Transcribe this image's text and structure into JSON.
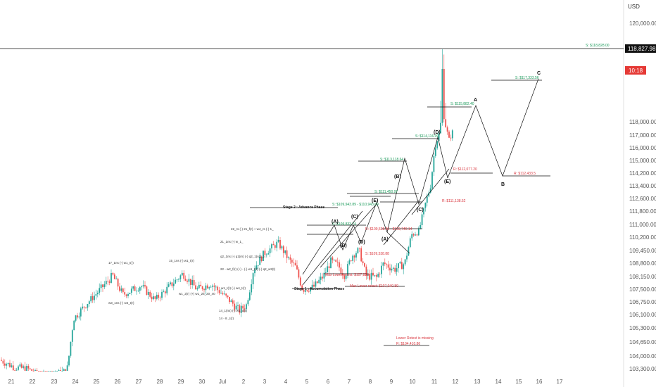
{
  "currency": "USD",
  "current_price": "118,827.98",
  "countdown": "10:18",
  "colors": {
    "up": "#26a69a",
    "down": "#ef5350",
    "green": "#1a9a5a",
    "red": "#d9363e",
    "line": "#111111"
  },
  "chart_data": {
    "type": "candlestick",
    "y_ticks": [
      "103,300.00",
      "104,000.00",
      "104,650.00",
      "105,300.00",
      "106,100.00",
      "106,750.00",
      "107,500.00",
      "108,150.00",
      "108,800.00",
      "109,450.00",
      "110,200.00",
      "111,000.00",
      "111,800.00",
      "112,600.00",
      "113,400.00",
      "114,200.00",
      "115,000.00",
      "116,000.00",
      "117,000.00",
      "118,000.00",
      "120,000.00"
    ],
    "x_ticks": [
      "21",
      "22",
      "23",
      "24",
      "25",
      "26",
      "27",
      "28",
      "29",
      "30",
      "Jul",
      "2",
      "3",
      "4",
      "5",
      "6",
      "7",
      "8",
      "9",
      "10",
      "11",
      "12",
      "13",
      "14",
      "15",
      "16",
      "17"
    ],
    "ylim": [
      103300,
      119000
    ],
    "levels": [
      {
        "text": "S: $118,828.00",
        "color": "green"
      },
      {
        "text": "S: $117,333.56",
        "color": "green"
      },
      {
        "text": "S: $115,882.40",
        "color": "green"
      },
      {
        "text": "S: $114,116.09",
        "color": "green"
      },
      {
        "text": "S: $113,118.64",
        "color": "green"
      },
      {
        "text": "S: $111,450.97",
        "color": "green"
      },
      {
        "text": "S: $109,943.89 - $110,943.69",
        "color": "green"
      },
      {
        "text": "S: $109,833.74",
        "color": "green"
      },
      {
        "text": "S: $109,538.88",
        "color": "red"
      },
      {
        "text": "R: $109,538.86 - $109,740.14",
        "color": "red"
      },
      {
        "text": "R: $112,077.20",
        "color": "red"
      },
      {
        "text": "R: $112,433.5",
        "color": "red"
      },
      {
        "text": "R: $111,138.52",
        "color": "red"
      },
      {
        "text": "Max Lower retest: $107,838",
        "color": "red"
      },
      {
        "text": "Max Lower retest: $107,040.80",
        "color": "red"
      },
      {
        "text": "Lower Retest is missing",
        "color": "red"
      },
      {
        "text": "R: $104,410.86",
        "color": "red"
      }
    ],
    "phases": [
      "Stage 2 : Advance Phase",
      "Stage 1 : Accumulation Phase"
    ],
    "wave_labels": [
      "(A)",
      "(B)",
      "(C)",
      "(D)",
      "(E)",
      "(A)",
      "(B)",
      "(C)",
      "(D)",
      "(E)"
    ],
    "projection_labels": [
      "A",
      "B",
      "C"
    ],
    "wave_counts": [
      "22_rs (-) 21_f(r) + w4_rs (-) 1_",
      "21_1ns (-) w_1_",
      "22 - w2_f(r) (+) - (-) w1_t(r) (-) q2_w2(t)",
      "q2_1ns (-) q1(rn) (-) q2_1(s(1_)",
      "17_1ns (-) w1_t(r)",
      "15_1ns (-) w1_t(r)",
      "w3_1ns (-) w2_t(r)",
      "w1_t(r) (-) w4_t(r)",
      "14_1(ns) (-) w1_d(t)",
      "14 - 8 _t(r)",
      "w1_2(r) (+) w1_25_20_40"
    ]
  }
}
